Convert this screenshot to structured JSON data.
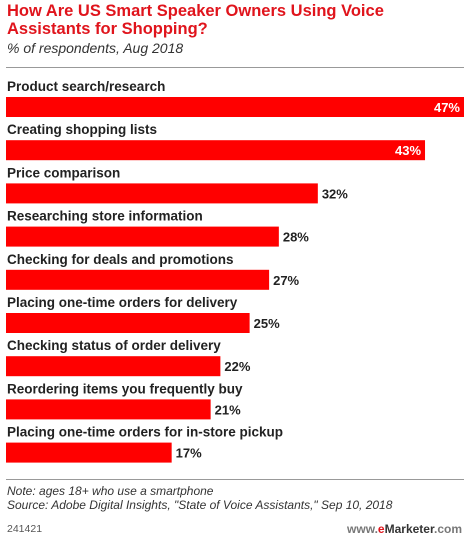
{
  "title": "How Are US Smart Speaker Owners Using Voice Assistants for Shopping?",
  "subtitle": "% of respondents, Aug 2018",
  "note": "Note: ages 18+ who use a smartphone",
  "source": "Source: Adobe Digital Insights, \"State of Voice Assistants,\" Sep 10, 2018",
  "chart_id": "241421",
  "brand": {
    "prefix": "www.",
    "e": "e",
    "rest": "Marketer",
    "suffix": ".com"
  },
  "colors": {
    "bar": "#ff0000",
    "title": "#e0141c"
  },
  "chart_data": {
    "type": "bar",
    "orientation": "horizontal",
    "title": "How Are US Smart Speaker Owners Using Voice Assistants for Shopping?",
    "subtitle": "% of respondents, Aug 2018",
    "unit": "%",
    "categories": [
      "Product search/research",
      "Creating shopping lists",
      "Price comparison",
      "Researching store information",
      "Checking for deals and promotions",
      "Placing one-time orders for delivery",
      "Checking status of order delivery",
      "Reordering items you frequently buy",
      "Placing one-time orders for in-store pickup"
    ],
    "values": [
      47,
      43,
      32,
      28,
      27,
      25,
      22,
      21,
      17
    ],
    "labels": [
      "47%",
      "43%",
      "32%",
      "28%",
      "27%",
      "25%",
      "22%",
      "21%",
      "17%"
    ],
    "xlim": [
      0,
      47
    ],
    "grid": false,
    "legend": "none"
  }
}
